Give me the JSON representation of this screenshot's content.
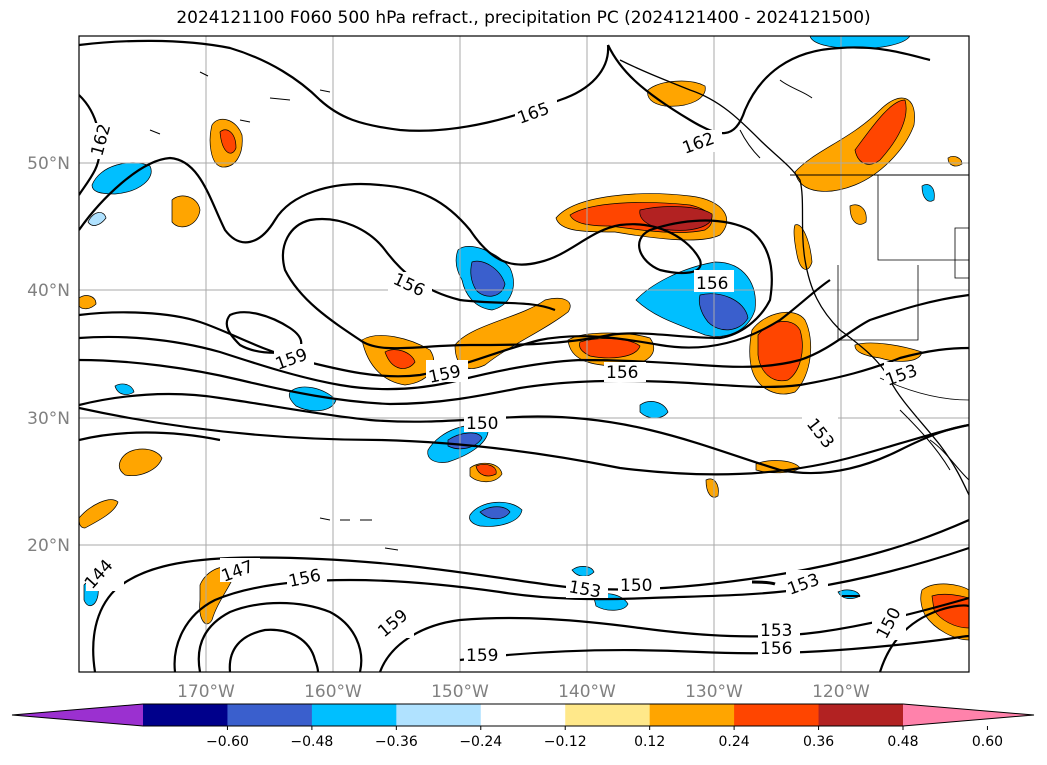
{
  "title": "2024121100 F060 500 hPa refract., precipitation PC (2024121400 - 2024121500)",
  "lat_labels": [
    "50°N",
    "40°N",
    "30°N",
    "20°N"
  ],
  "lon_labels": [
    "170°W",
    "160°W",
    "150°W",
    "140°W",
    "130°W",
    "120°W"
  ],
  "contour_labels": [
    "162",
    "165",
    "162",
    "156",
    "156",
    "159",
    "159",
    "156",
    "153",
    "150",
    "153",
    "144",
    "147",
    "156",
    "153",
    "150",
    "153",
    "159",
    "153",
    "156",
    "150",
    "159"
  ],
  "colorbar": {
    "ticks": [
      "−0.60",
      "−0.48",
      "−0.36",
      "−0.24",
      "−0.12",
      "0.12",
      "0.24",
      "0.36",
      "0.48",
      "0.60"
    ],
    "colors": [
      "#9b30d0",
      "#00008b",
      "#3a5fcd",
      "#00bfff",
      "#b0e2ff",
      "#ffffff",
      "#ffe88a",
      "#ffa500",
      "#ff4500",
      "#b22222",
      "#ff82ab"
    ]
  }
}
